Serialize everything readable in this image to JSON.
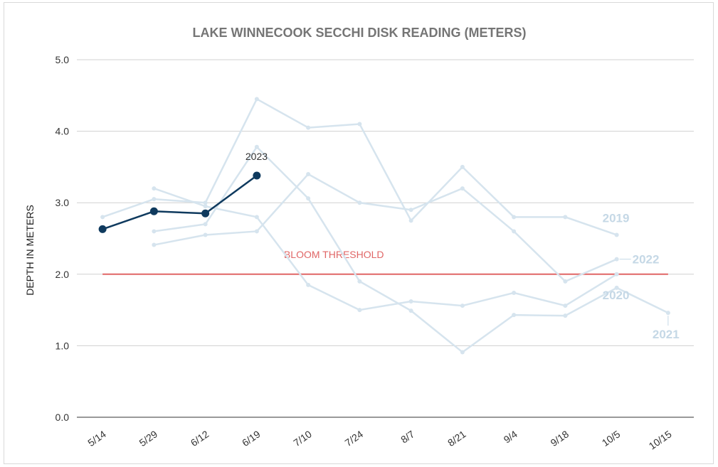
{
  "chart_data": {
    "type": "line",
    "title": "LAKE WINNECOOK SECCHI DISK READING (METERS)",
    "ylabel": "DEPTH IN METERS",
    "xlabel": "",
    "categories": [
      "5/14",
      "5/29",
      "6/12",
      "6/19",
      "7/10",
      "7/24",
      "8/7",
      "8/21",
      "9/4",
      "9/18",
      "10/5",
      "10/15"
    ],
    "ylim": [
      0,
      5
    ],
    "yticks": [
      "0.0",
      "1.0",
      "2.0",
      "3.0",
      "4.0",
      "5.0"
    ],
    "grid": true,
    "series": [
      {
        "name": "2019",
        "color": "#d6e4ee",
        "highlight": false,
        "values": [
          2.8,
          3.05,
          3.0,
          4.45,
          4.05,
          4.1,
          2.75,
          3.5,
          2.8,
          2.8,
          2.55,
          null
        ]
      },
      {
        "name": "2020",
        "color": "#d6e4ee",
        "highlight": false,
        "values": [
          null,
          3.2,
          2.95,
          2.8,
          1.85,
          1.5,
          1.62,
          1.56,
          1.74,
          1.56,
          2.0,
          null
        ]
      },
      {
        "name": "2021",
        "color": "#d6e4ee",
        "highlight": false,
        "values": [
          null,
          2.6,
          2.7,
          3.78,
          3.06,
          1.9,
          1.49,
          0.91,
          1.43,
          1.42,
          1.81,
          1.46
        ]
      },
      {
        "name": "2022",
        "color": "#d6e4ee",
        "highlight": false,
        "values": [
          null,
          2.41,
          2.55,
          2.6,
          3.4,
          3.0,
          2.9,
          3.2,
          2.6,
          1.9,
          2.21,
          null
        ]
      },
      {
        "name": "2023",
        "color": "#0f3a5e",
        "highlight": true,
        "values": [
          2.63,
          2.88,
          2.85,
          3.38,
          null,
          null,
          null,
          null,
          null,
          null,
          null,
          null
        ]
      }
    ],
    "series_labels": {
      "2019": "2019",
      "2020": "2020",
      "2021": "2021",
      "2022": "2022",
      "2023": "2023"
    },
    "label_colors": {
      "faded": "#c5d8e6",
      "highlight": "#d32f2f"
    },
    "threshold": {
      "value": 2.0,
      "label": "BLOOM THRESHOLD",
      "color": "#e06666"
    }
  }
}
